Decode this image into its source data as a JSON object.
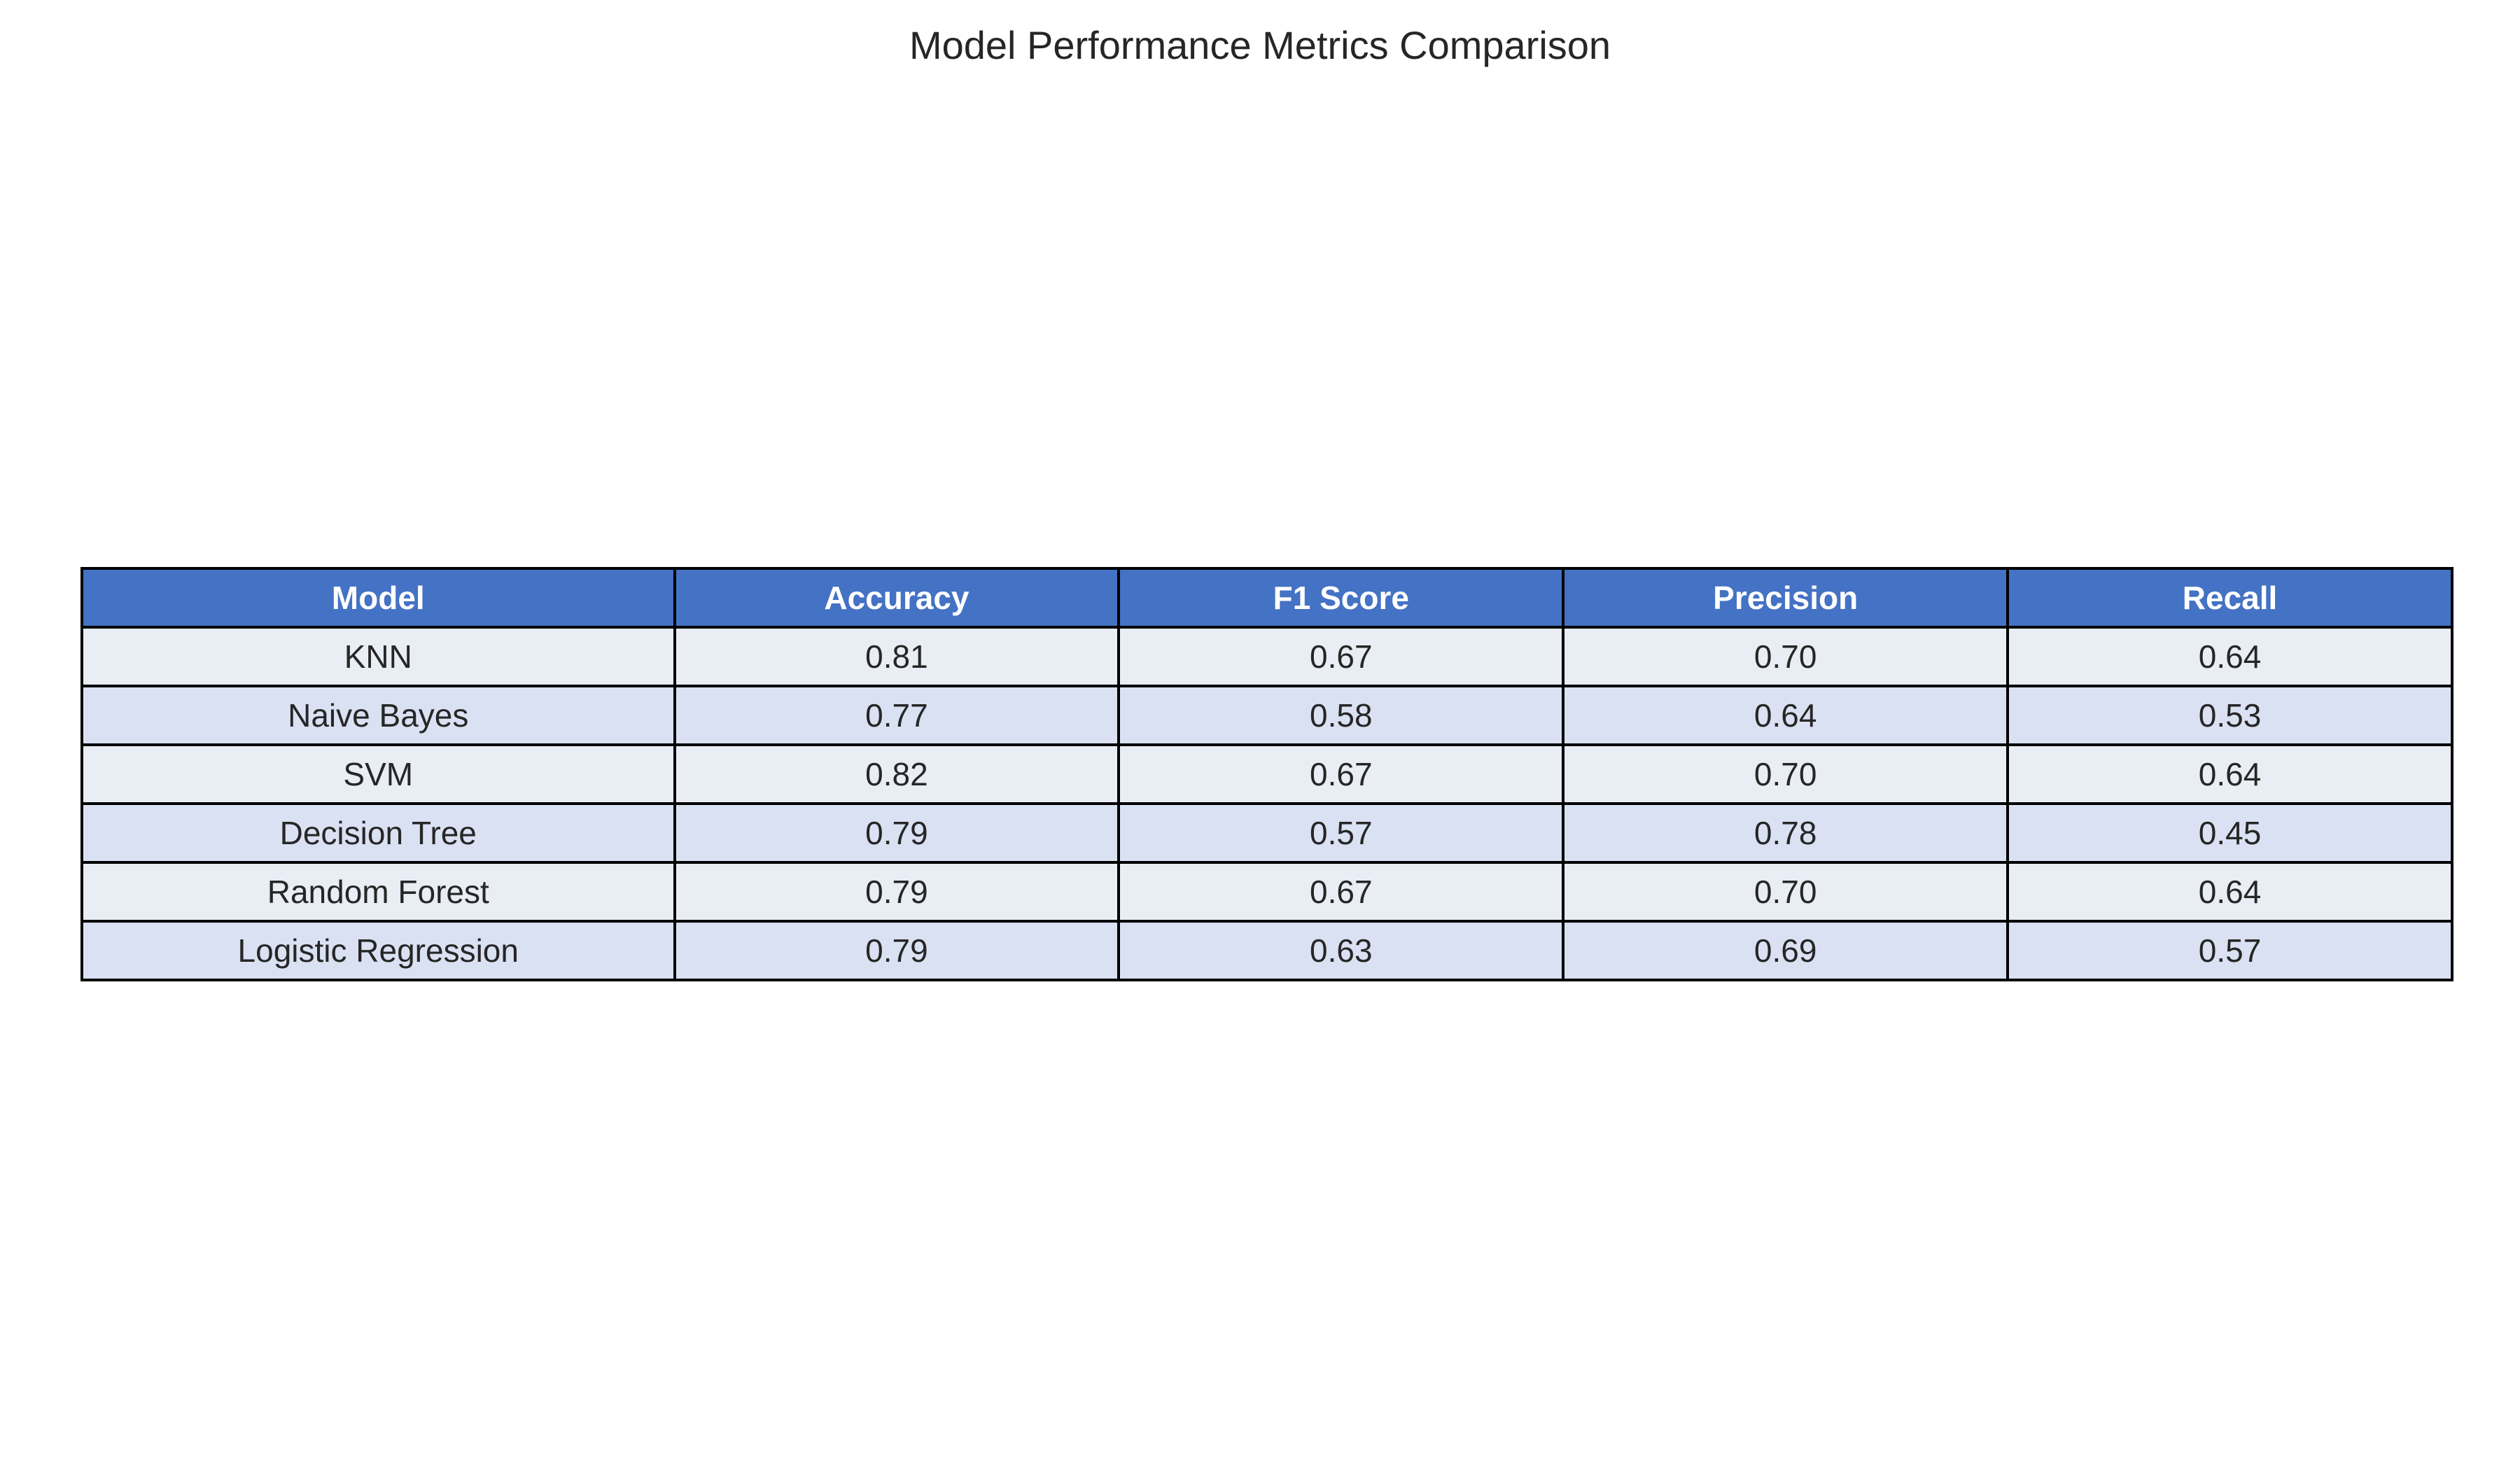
{
  "chart_data": {
    "type": "table",
    "title": "Model Performance Metrics Comparison",
    "columns": [
      "Model",
      "Accuracy",
      "F1 Score",
      "Precision",
      "Recall"
    ],
    "rows": [
      [
        "KNN",
        "0.81",
        "0.67",
        "0.70",
        "0.64"
      ],
      [
        "Naive Bayes",
        "0.77",
        "0.58",
        "0.64",
        "0.53"
      ],
      [
        "SVM",
        "0.82",
        "0.67",
        "0.70",
        "0.64"
      ],
      [
        "Decision Tree",
        "0.79",
        "0.57",
        "0.78",
        "0.45"
      ],
      [
        "Random Forest",
        "0.79",
        "0.67",
        "0.70",
        "0.64"
      ],
      [
        "Logistic Regression",
        "0.79",
        "0.63",
        "0.69",
        "0.57"
      ]
    ],
    "colors": {
      "header_bg": "#4472c4",
      "header_text": "#ffffff",
      "row_odd_bg": "#e9edf4",
      "row_even_bg": "#dae1f2",
      "border": "#000000"
    }
  }
}
